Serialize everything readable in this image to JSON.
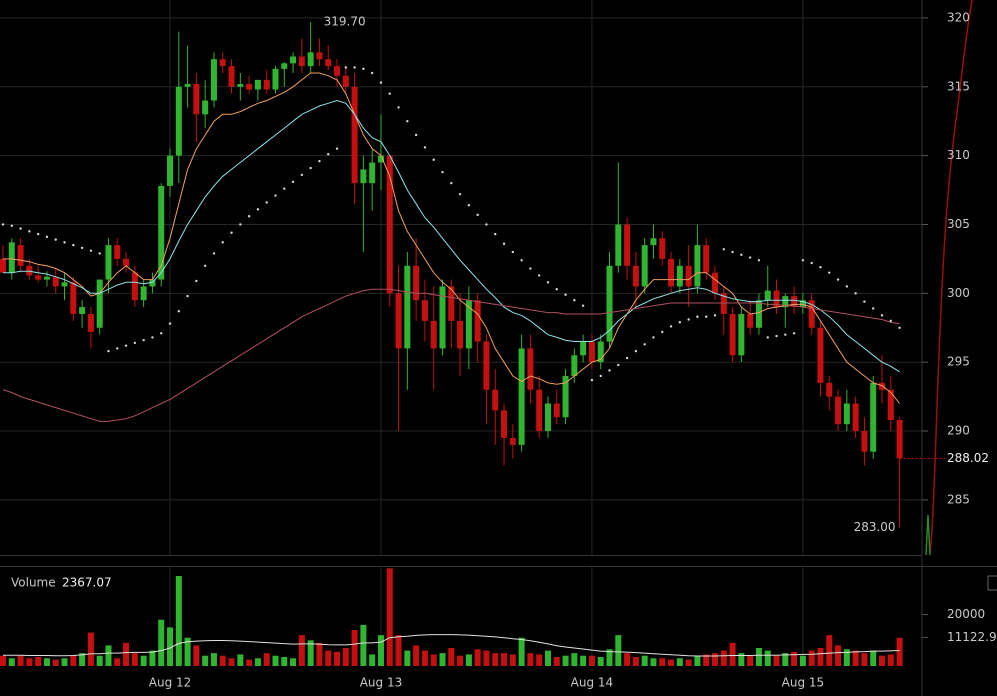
{
  "chart_data": [
    {
      "type": "candlestick",
      "categories": [
        null,
        null,
        null,
        null,
        null,
        null,
        null,
        null,
        null,
        null,
        null,
        null,
        null,
        null,
        null,
        null,
        null,
        null,
        null,
        "Aug 12",
        null,
        null,
        null,
        null,
        null,
        null,
        null,
        null,
        null,
        null,
        null,
        null,
        null,
        null,
        null,
        null,
        null,
        null,
        null,
        null,
        null,
        null,
        null,
        "Aug 13",
        null,
        null,
        null,
        null,
        null,
        null,
        null,
        null,
        null,
        null,
        null,
        null,
        null,
        null,
        null,
        null,
        null,
        null,
        null,
        null,
        null,
        null,
        null,
        "Aug 14",
        null,
        null,
        null,
        null,
        null,
        null,
        null,
        null,
        null,
        null,
        null,
        null,
        null,
        null,
        null,
        null,
        null,
        null,
        null,
        null,
        null,
        null,
        null,
        "Aug 15",
        null,
        null,
        null,
        null,
        null,
        null,
        null,
        null,
        null,
        null,
        null
      ],
      "open": [
        302.5,
        301.5,
        303.5,
        302,
        301.3,
        301,
        301.2,
        300.5,
        300.8,
        298.5,
        298.5,
        297.5,
        301,
        303.5,
        302.5,
        301.5,
        299.5,
        300.5,
        301,
        307.8,
        310,
        315,
        315.2,
        313,
        314,
        317,
        316.5,
        315,
        315.2,
        314.8,
        315.5,
        314.8,
        316.3,
        316.7,
        317.2,
        316.5,
        317.5,
        317,
        316.5,
        315.8,
        315,
        308,
        308,
        309.5,
        310,
        300,
        296,
        302,
        299.5,
        298,
        296,
        300.5,
        298,
        296,
        299.5,
        296.5,
        293,
        291.5,
        289.5,
        289,
        296,
        293,
        290,
        292,
        291,
        294,
        295.5,
        296.5,
        295,
        296.5,
        302,
        305,
        302,
        300.5,
        303.5,
        304,
        302.5,
        300.5,
        302,
        300.5,
        303.5,
        301.5,
        300,
        298.5,
        295.5,
        298.5,
        297.5,
        299.5,
        300.2,
        299,
        299.8,
        299,
        299.5,
        297.5,
        293.5,
        292.5,
        290.5,
        292,
        290,
        288.5,
        293.5,
        293,
        290.8
      ],
      "high": [
        303.5,
        304,
        304,
        302.5,
        302,
        301.6,
        301.8,
        301.5,
        301.2,
        299.5,
        299,
        301,
        304,
        304,
        303,
        302,
        301,
        301.5,
        308,
        310.5,
        319,
        318,
        316,
        315.5,
        317.5,
        317.5,
        317,
        316,
        315.8,
        315.5,
        316.2,
        316.5,
        316.8,
        317.5,
        318.5,
        319.7,
        318.5,
        318,
        317,
        316.5,
        316,
        310,
        310.5,
        313,
        310,
        302,
        303,
        304,
        301,
        300.5,
        301,
        301,
        300,
        300.5,
        300,
        297,
        294.5,
        292,
        290.5,
        297,
        297,
        294,
        292.5,
        293,
        294.5,
        296,
        297,
        297,
        297,
        303,
        309.5,
        305.5,
        303,
        304,
        305,
        304.5,
        303,
        302.5,
        303.5,
        305,
        304,
        302,
        300.5,
        299,
        299,
        299.5,
        300,
        302,
        301,
        300,
        300.5,
        300,
        300,
        298,
        294,
        293,
        293,
        292.5,
        291,
        294,
        295.5,
        294,
        291
      ],
      "low": [
        301.5,
        301,
        301.5,
        301,
        300.8,
        300.5,
        300,
        299.5,
        298,
        297.5,
        296,
        297,
        300,
        302,
        301.5,
        299,
        299,
        300,
        300.5,
        307,
        308,
        313.5,
        311,
        312,
        313.5,
        316,
        314.5,
        314,
        314.5,
        314,
        314.5,
        314.5,
        315,
        316,
        316,
        316,
        316.5,
        316.2,
        315,
        314.5,
        306.5,
        303,
        306,
        307.5,
        299,
        290,
        293,
        298,
        296.5,
        293,
        295.5,
        296,
        294,
        294.5,
        295,
        290.5,
        289,
        287.5,
        288,
        288.5,
        292,
        289.5,
        289.5,
        290.5,
        290.5,
        293.5,
        295,
        294.5,
        294.5,
        296,
        301.5,
        301,
        299,
        300,
        302.5,
        302,
        300,
        300,
        299,
        300,
        301,
        299.5,
        297,
        295,
        295,
        297,
        297,
        299,
        298.5,
        297.5,
        298.5,
        298.5,
        297,
        292.5,
        291.5,
        290,
        290,
        289.5,
        287.5,
        288,
        292,
        290,
        283
      ],
      "close": [
        301.5,
        303.7,
        302,
        301.3,
        301,
        301.2,
        300.5,
        300.8,
        298.5,
        299,
        297.2,
        301,
        303.5,
        302.5,
        302,
        299.5,
        300.5,
        301,
        307.8,
        310,
        315,
        315.2,
        313,
        314,
        317,
        316.5,
        315,
        315.2,
        314.8,
        315.5,
        314.8,
        316.3,
        316.7,
        317.2,
        316.5,
        317.5,
        317,
        316.5,
        315.8,
        315,
        308,
        309,
        309.5,
        310,
        300,
        296,
        302,
        299.5,
        298,
        296,
        300.5,
        298,
        296,
        299.5,
        296.5,
        293,
        291.5,
        289.5,
        289,
        296,
        293,
        290,
        292,
        291,
        294,
        295.5,
        296.5,
        295,
        296.5,
        302,
        305,
        302,
        300.5,
        303.5,
        304,
        302.5,
        300.5,
        302,
        300.5,
        303.5,
        301.5,
        300,
        298.5,
        295.5,
        298.5,
        297.5,
        299.5,
        300.2,
        299,
        299.8,
        299,
        299.5,
        297.5,
        293.5,
        292.5,
        290.5,
        292,
        290,
        288.5,
        293.5,
        293,
        290.8,
        288.02
      ],
      "up_color": "#2fb52f",
      "down_color": "#c41010",
      "series": [
        {
          "color": "#f0a060",
          "style": "line",
          "values": [
            302.5,
            302.5,
            302.4,
            302.3,
            302.1,
            302,
            301.8,
            301.5,
            301,
            300.5,
            299.8,
            300,
            300.8,
            301.5,
            302,
            301.5,
            301,
            301,
            302,
            304,
            306.5,
            309,
            310.5,
            311.5,
            312.5,
            313,
            313,
            313.2,
            313.5,
            313.8,
            314,
            314.3,
            314.6,
            315,
            315.5,
            316,
            316,
            315.8,
            315.5,
            314.5,
            313,
            311.5,
            310.5,
            310,
            308.5,
            306,
            304.5,
            303.5,
            302.5,
            301.5,
            300.8,
            300.3,
            299.5,
            299,
            298.5,
            297.5,
            296,
            295,
            294,
            293.6,
            294,
            293.8,
            293.5,
            293.4,
            293.5,
            294,
            294.5,
            295,
            295.2,
            296,
            297.5,
            298.5,
            299.5,
            300.3,
            301,
            301,
            301,
            301,
            301,
            301.5,
            301.5,
            301,
            300.5,
            300,
            299,
            298.5,
            298.6,
            298.9,
            299,
            299.1,
            299.2,
            299.2,
            299,
            298,
            297,
            296,
            295,
            294.5,
            294,
            293.5,
            293.3,
            292.8,
            292
          ]
        },
        {
          "color": "#8fe0e8",
          "style": "line",
          "values": [
            301.5,
            301.5,
            301.6,
            301.6,
            301.5,
            301.4,
            301.2,
            301,
            300.7,
            300.4,
            300,
            300,
            300.3,
            300.6,
            300.8,
            300.8,
            300.7,
            300.8,
            301.5,
            302.5,
            303.8,
            305,
            306,
            307,
            307.8,
            308.5,
            309,
            309.5,
            310,
            310.5,
            311,
            311.5,
            312,
            312.5,
            313,
            313.3,
            313.6,
            313.8,
            314,
            313.8,
            313,
            312,
            311.3,
            311,
            310,
            308.8,
            307.5,
            306.5,
            305.5,
            304.8,
            304,
            303.2,
            302.4,
            301.7,
            301,
            300.3,
            299.7,
            299,
            298.6,
            298.4,
            298,
            297.5,
            297,
            296.8,
            296.6,
            296.5,
            296.5,
            296.5,
            296.8,
            297.3,
            298,
            298.5,
            299,
            299.3,
            299.6,
            299.8,
            300,
            300.2,
            300.3,
            300.4,
            300.3,
            300,
            299.8,
            299.6,
            299.5,
            299.4,
            299.4,
            299.5,
            299.5,
            299.5,
            299.5,
            299.4,
            299.2,
            298.8,
            298.3,
            297.7,
            297,
            296.5,
            296,
            295.5,
            295,
            294.7,
            294.3
          ]
        },
        {
          "color": "#b0505f",
          "style": "line",
          "values": [
            293,
            292.8,
            292.5,
            292.3,
            292.1,
            291.9,
            291.7,
            291.5,
            291.3,
            291.1,
            290.9,
            290.7,
            290.7,
            290.8,
            290.9,
            291.1,
            291.4,
            291.7,
            292,
            292.3,
            292.7,
            293.1,
            293.5,
            293.9,
            294.3,
            294.7,
            295.1,
            295.5,
            295.9,
            296.3,
            296.7,
            297.1,
            297.5,
            297.9,
            298.3,
            298.6,
            298.9,
            299.2,
            299.5,
            299.8,
            300,
            300.2,
            300.3,
            300.3,
            300.3,
            300.2,
            300.1,
            300,
            300,
            299.9,
            299.8,
            299.7,
            299.6,
            299.5,
            299.4,
            299.3,
            299.2,
            299.1,
            299,
            298.9,
            298.8,
            298.7,
            298.6,
            298.6,
            298.5,
            298.5,
            298.5,
            298.5,
            298.5,
            298.6,
            298.7,
            298.8,
            298.9,
            299,
            299.1,
            299.2,
            299.3,
            299.3,
            299.3,
            299.3,
            299.3,
            299.3,
            299.3,
            299.3,
            299.3,
            299.3,
            299.3,
            299.2,
            299.2,
            299.1,
            299.1,
            299,
            298.9,
            298.8,
            298.7,
            298.6,
            298.5,
            298.4,
            298.3,
            298.2,
            298.1,
            297.9,
            297.8
          ]
        },
        {
          "color": "#d8d8d8",
          "style": "dots",
          "values": [
            305,
            304.9,
            304.7,
            304.5,
            304.3,
            304.1,
            303.9,
            303.7,
            303.5,
            303.3,
            303.1,
            302.9,
            295.8,
            296,
            296.2,
            296.4,
            296.6,
            296.8,
            297.1,
            297.8,
            298.7,
            299.8,
            300.9,
            302,
            302.9,
            303.7,
            304.4,
            305,
            305.6,
            306.1,
            306.6,
            307.1,
            307.6,
            308.1,
            308.6,
            309.1,
            309.6,
            310.1,
            310.5,
            316.4,
            316.4,
            316.3,
            316,
            315.3,
            314.5,
            313.5,
            312.5,
            311.5,
            310.6,
            309.7,
            308.8,
            308,
            307.2,
            306.4,
            305.7,
            305,
            304.3,
            303.6,
            303,
            302.4,
            301.8,
            301.3,
            300.8,
            300.3,
            299.9,
            299.5,
            299.1,
            293.7,
            294,
            294.4,
            294.8,
            295.3,
            295.8,
            296.3,
            296.8,
            297.2,
            297.6,
            297.9,
            298.1,
            298.3,
            298.3,
            298.4,
            303.2,
            303,
            302.8,
            302.6,
            302.4,
            296.8,
            296.9,
            297,
            297.1,
            302.4,
            302.2,
            301.9,
            301.5,
            301,
            300.5,
            300,
            299.4,
            298.9,
            298.4,
            298,
            297.5
          ]
        }
      ],
      "ylim": [
        281,
        321.3
      ],
      "yticks": [
        285,
        290,
        295,
        300,
        305,
        310,
        315,
        320
      ],
      "grid": true,
      "annotations": [
        {
          "value": 319.7,
          "label": "319.70"
        },
        {
          "value": 283,
          "label": "283.00"
        }
      ],
      "last_price": 288.02
    },
    {
      "type": "bar",
      "title": "Volume",
      "current": 2367.07,
      "values": [
        4000,
        3000,
        4000,
        3000,
        3500,
        3000,
        2500,
        3000,
        4000,
        5000,
        13000,
        4000,
        8000,
        3000,
        9000,
        5000,
        4000,
        6000,
        18000,
        15000,
        35000,
        11000,
        8000,
        4000,
        5000,
        4000,
        3000,
        4500,
        2500,
        3000,
        5000,
        4000,
        3500,
        3000,
        12000,
        10000,
        9000,
        6000,
        5500,
        7000,
        14000,
        16000,
        4500,
        12000,
        38000,
        12000,
        6000,
        8000,
        6000,
        4500,
        5000,
        7000,
        4000,
        4500,
        6500,
        6000,
        5000,
        5000,
        4500,
        11000,
        5000,
        4500,
        6000,
        3500,
        4000,
        5000,
        4000,
        4000,
        3500,
        6500,
        12000,
        5000,
        3500,
        4000,
        3000,
        3000,
        2500,
        3000,
        2500,
        4000,
        4500,
        5000,
        6000,
        9000,
        5000,
        4000,
        7000,
        6000,
        4000,
        5000,
        5500,
        4000,
        6000,
        7000,
        12000,
        8000,
        6500,
        6000,
        5000,
        6000,
        4000,
        4500,
        11000
      ],
      "series": [
        {
          "color": "#e0e0e0",
          "values": [
            4200,
            4200,
            4200,
            4100,
            4100,
            4100,
            4000,
            4000,
            4100,
            4300,
            4800,
            4800,
            5000,
            5000,
            5200,
            5300,
            5300,
            5400,
            6000,
            7000,
            8800,
            9400,
            9700,
            9800,
            9900,
            9900,
            9800,
            9700,
            9500,
            9300,
            9100,
            8900,
            8700,
            8500,
            8600,
            8600,
            8500,
            8300,
            8200,
            8200,
            8500,
            9000,
            9000,
            9300,
            11000,
            11400,
            11600,
            11900,
            12100,
            12200,
            12200,
            12200,
            12100,
            12000,
            11800,
            11600,
            11300,
            11000,
            10600,
            10300,
            9800,
            9200,
            8600,
            7900,
            7400,
            7000,
            6600,
            6200,
            5800,
            5600,
            5500,
            5400,
            5200,
            5000,
            4800,
            4600,
            4400,
            4200,
            4000,
            3900,
            3900,
            3900,
            4000,
            4100,
            4100,
            4100,
            4200,
            4200,
            4200,
            4300,
            4400,
            4500,
            4600,
            4800,
            5000,
            5200,
            5300,
            5500,
            5600,
            5800,
            5800,
            5900,
            6000
          ]
        }
      ],
      "ylim": [
        0,
        38500
      ],
      "yticks": [
        20000,
        11122.9
      ]
    }
  ]
}
